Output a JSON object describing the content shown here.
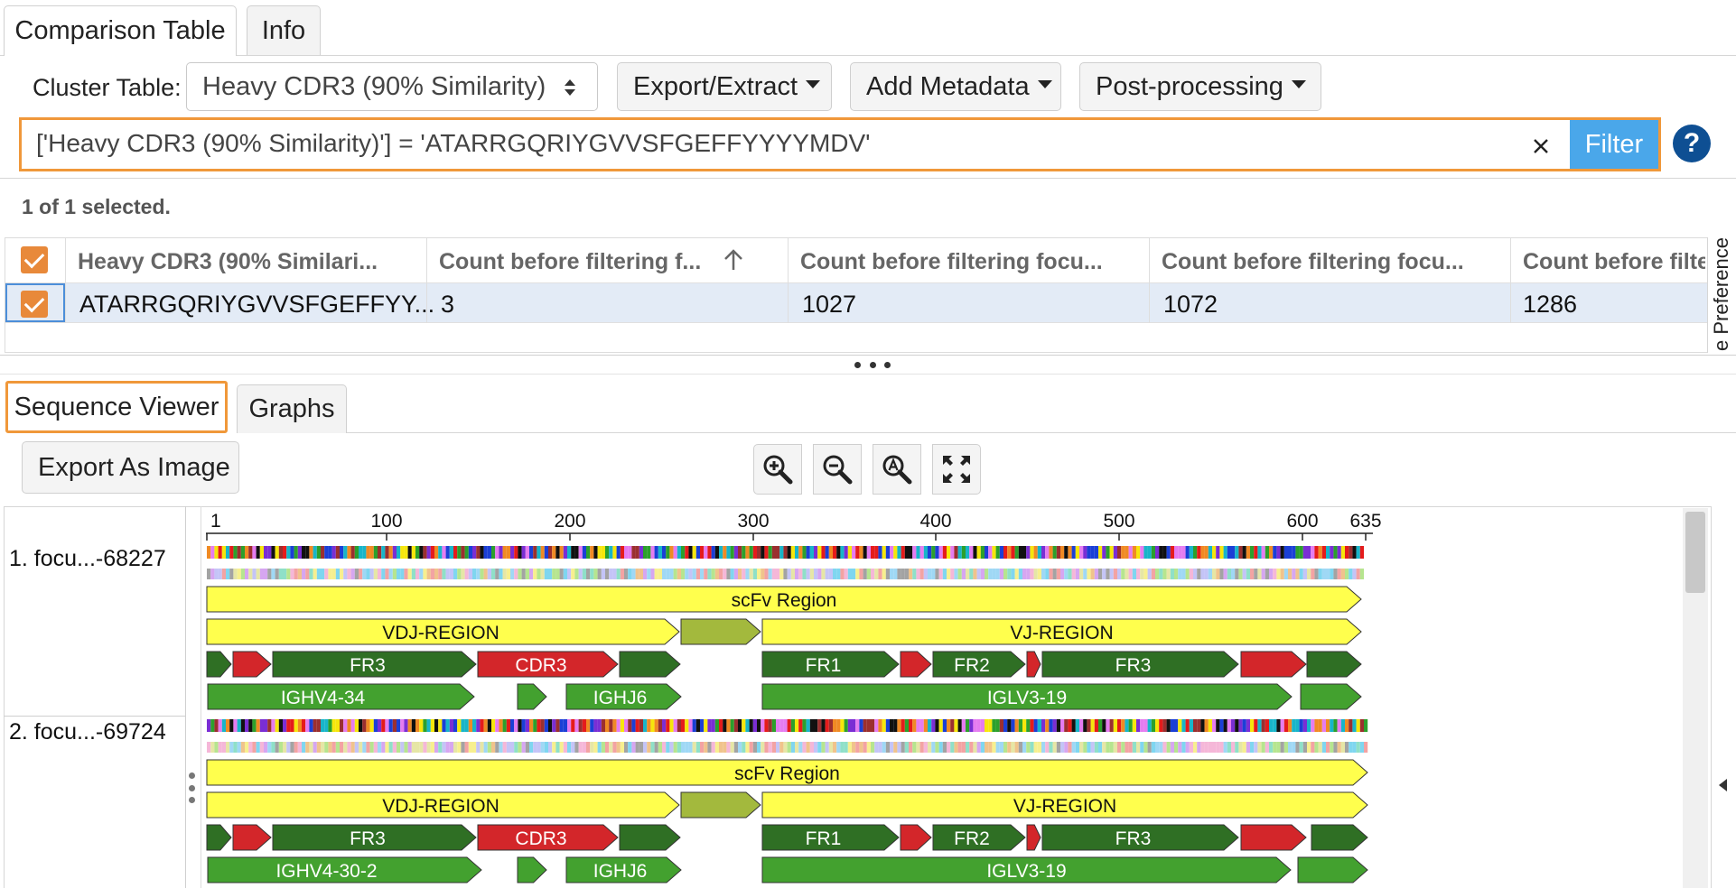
{
  "top_tabs": [
    {
      "label": "Comparison Table"
    },
    {
      "label": "Info"
    }
  ],
  "toolbar": {
    "cluster_label": "Cluster Table:",
    "cluster_value": "Heavy CDR3 (90% Similarity)",
    "export_label": "Export/Extract",
    "metadata_label": "Add Metadata",
    "postproc_label": "Post-processing"
  },
  "filter": {
    "value": "['Heavy CDR3 (90% Similarity)'] = 'ATARRGQRIYGVVSFGEFFYYYYMDV'",
    "button_label": "Filter",
    "help_icon": "question-circle-icon",
    "accent": "#f0983a",
    "button_color": "#4aa7ea"
  },
  "selection_status": "1 of 1 selected.",
  "table": {
    "columns": [
      "Heavy CDR3 (90% Similari...",
      "Count before filtering f...",
      "Count before filtering focu...",
      "Count before filtering focu...",
      "Count before filte"
    ],
    "rows": [
      [
        "ATARRGQRIYGVVSFGEFFYY...",
        "3",
        "1027",
        "1072",
        "1286"
      ]
    ],
    "side_panel_label": "e Preference"
  },
  "bottom_tabs": [
    {
      "label": "Sequence Viewer"
    },
    {
      "label": "Graphs"
    }
  ],
  "viewer": {
    "export_label": "Export As Image",
    "zoom_icons": [
      "zoom-in-icon",
      "zoom-out-icon",
      "zoom-reset-icon",
      "fit-screen-icon"
    ],
    "ruler_ticks": [
      "1",
      "100",
      "200",
      "300",
      "400",
      "500",
      "600",
      "635"
    ],
    "sequences": [
      {
        "label": "1. focu...-68227",
        "scfv_label": "scFv Region",
        "vdj_label": "VDJ-REGION",
        "vj_label": "VJ-REGION",
        "regions": [
          "FR3",
          "CDR3",
          "FR1",
          "FR2",
          "FR3"
        ],
        "genes": [
          "IGHV4-34",
          "IGHJ6",
          "IGLV3-19"
        ]
      },
      {
        "label": "2. focu...-69724",
        "scfv_label": "scFv Region",
        "vdj_label": "VDJ-REGION",
        "vj_label": "VJ-REGION",
        "regions": [
          "FR3",
          "CDR3",
          "FR1",
          "FR2",
          "FR3"
        ],
        "genes": [
          "IGHV4-30-2",
          "IGHJ6",
          "IGLV3-19"
        ]
      }
    ]
  }
}
